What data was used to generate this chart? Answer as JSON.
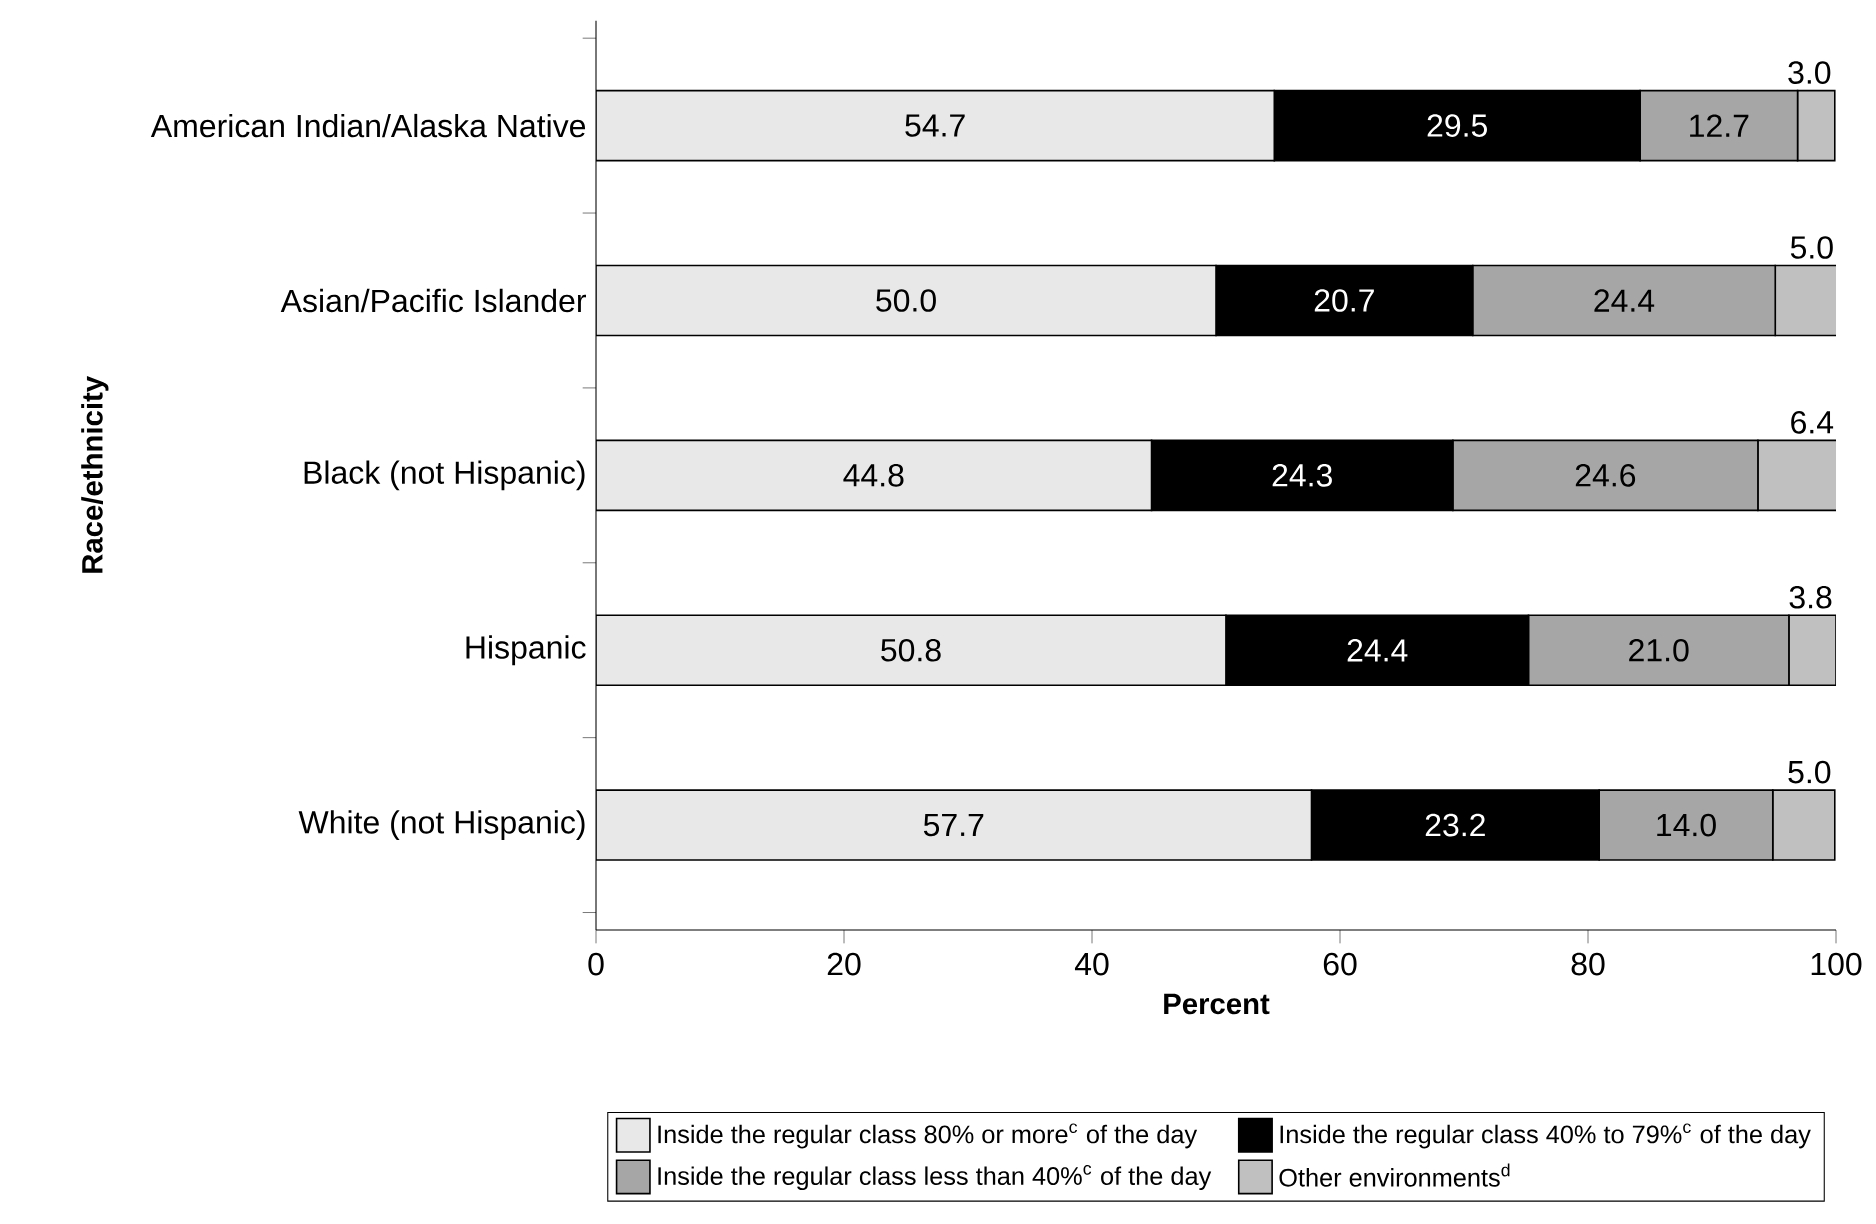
{
  "chart_data": {
    "type": "bar",
    "orientation": "horizontal",
    "stacked": true,
    "legend": "bottom",
    "grid": false,
    "xlabel": "Percent",
    "ylabel": "Race/ethnicity",
    "categories": [
      "American Indian/Alaska Native",
      "Asian/Pacific Islander",
      "Black (not Hispanic)",
      "Hispanic",
      "White (not Hispanic)"
    ],
    "xlim": [
      0,
      100
    ],
    "xticks": [
      0,
      20,
      40,
      60,
      80,
      100
    ],
    "series": [
      {
        "name": "Inside the regular class 80% or more$^{c}$ of the day",
        "color": "#e8e8e8",
        "values": [
          54.7,
          50.0,
          44.8,
          50.8,
          57.7
        ],
        "value_labels": [
          "54.7",
          "50.0",
          "44.8",
          "50.8",
          "57.7"
        ]
      },
      {
        "name": "Inside the regular class 40% to 79%$^{c}$ of the day",
        "color": "#000000",
        "values": [
          29.5,
          20.7,
          24.3,
          24.4,
          23.2
        ],
        "value_labels": [
          "29.5",
          "20.7",
          "24.3",
          "24.4",
          "23.2"
        ]
      },
      {
        "name": "Inside the regular class less than 40%$^{c}$ of the day",
        "color": "#a6a6a6",
        "values": [
          12.7,
          24.4,
          24.6,
          21.0,
          14.0
        ],
        "value_labels": [
          "12.7",
          "24.4",
          "24.6",
          "21.0",
          "14.0"
        ]
      },
      {
        "name": "Other environments$^{d}$",
        "color": "#c0c0c0",
        "values": [
          3.0,
          5.0,
          6.4,
          3.8,
          5.0
        ],
        "value_labels": [
          "3.0",
          "5.0",
          "6.4",
          "3.8",
          "5.0"
        ]
      }
    ]
  }
}
